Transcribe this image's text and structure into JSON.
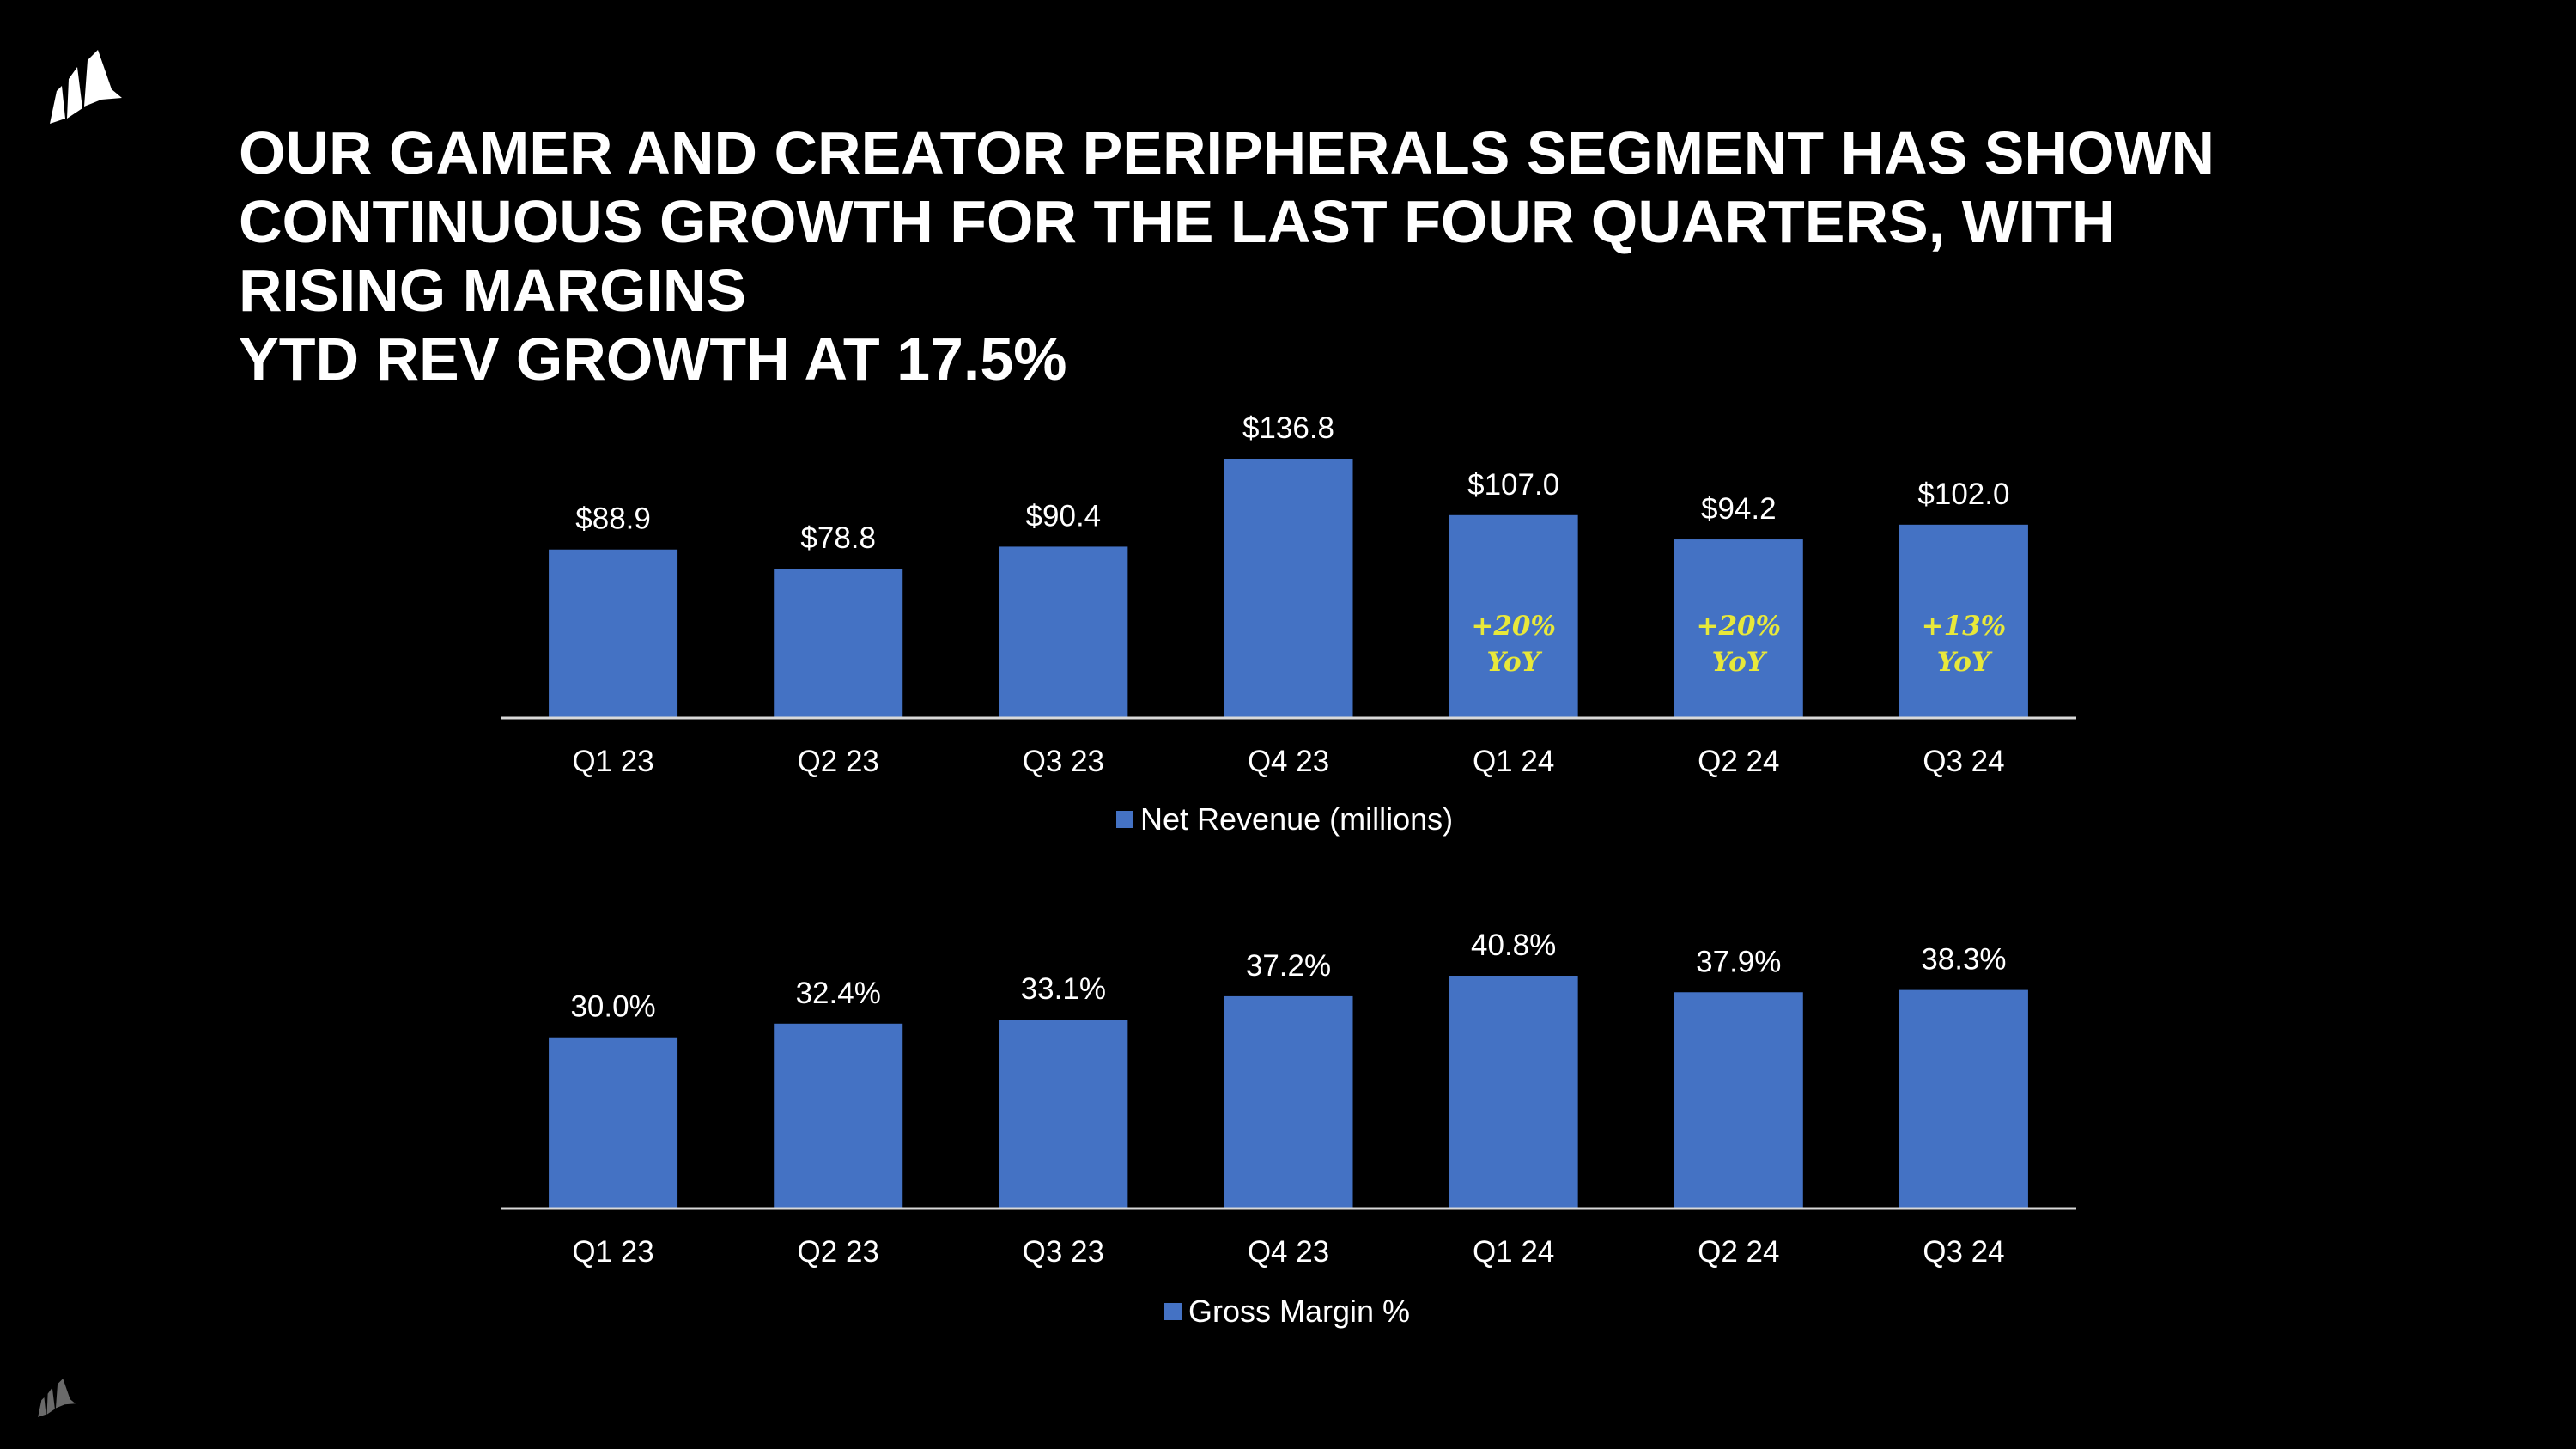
{
  "headline": {
    "lines": [
      "OUR GAMER AND CREATOR PERIPHERALS SEGMENT HAS SHOWN",
      "CONTINUOUS GROWTH FOR THE LAST FOUR QUARTERS, WITH",
      "RISING MARGINS",
      "YTD REV GROWTH AT 17.5%"
    ]
  },
  "icons": {
    "logo": "sail-logo-icon"
  },
  "colors": {
    "background": "#000000",
    "bar": "#4472C4",
    "text": "#FFFFFF",
    "yoy_annotation": "#E8E83A",
    "axis": "#D9D9D9"
  },
  "chart_data": [
    {
      "type": "bar",
      "categories": [
        "Q1 23",
        "Q2 23",
        "Q3 23",
        "Q4 23",
        "Q1 24",
        "Q2 24",
        "Q3 24"
      ],
      "series": [
        {
          "name": "Net Revenue (millions)",
          "values": [
            88.9,
            78.8,
            90.4,
            136.8,
            107.0,
            94.2,
            102.0
          ]
        }
      ],
      "data_labels": [
        "$88.9",
        "$78.8",
        "$90.4",
        "$136.8",
        "$107.0",
        "$94.2",
        "$102.0"
      ],
      "annotations": [
        {
          "category": "Q1 24",
          "lines": [
            "+20%",
            "YoY"
          ]
        },
        {
          "category": "Q2 24",
          "lines": [
            "+20%",
            "YoY"
          ]
        },
        {
          "category": "Q3 24",
          "lines": [
            "+13%",
            "YoY"
          ]
        }
      ],
      "ylim": [
        0,
        136.8
      ],
      "grid": false,
      "legend": "bottom-center"
    },
    {
      "type": "bar",
      "categories": [
        "Q1 23",
        "Q2 23",
        "Q3 23",
        "Q4 23",
        "Q1 24",
        "Q2 24",
        "Q3 24"
      ],
      "series": [
        {
          "name": "Gross Margin %",
          "values": [
            30.0,
            32.4,
            33.1,
            37.2,
            40.8,
            37.9,
            38.3
          ]
        }
      ],
      "data_labels": [
        "30.0%",
        "32.4%",
        "33.1%",
        "37.2%",
        "40.8%",
        "37.9%",
        "38.3%"
      ],
      "ylim": [
        0,
        40.8
      ],
      "grid": false,
      "legend": "bottom-center"
    }
  ]
}
